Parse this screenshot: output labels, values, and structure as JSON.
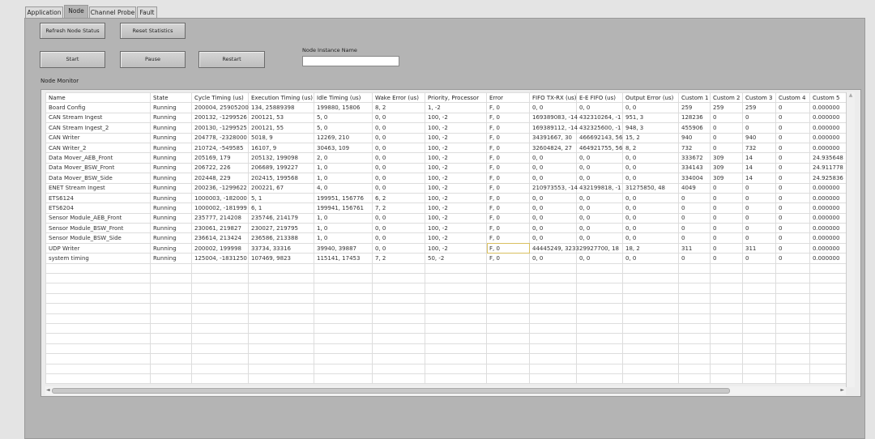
{
  "tabs": [
    {
      "label": "Application"
    },
    {
      "label": "Node"
    },
    {
      "label": "Channel Probe"
    },
    {
      "label": "Fault"
    }
  ],
  "active_tab": "Node",
  "buttons": {
    "refresh": "Refresh Node Status",
    "reset": "Reset Statistics",
    "start": "Start",
    "pause": "Pause",
    "restart": "Restart"
  },
  "node_instance": {
    "label": "Node Instance Name",
    "value": ""
  },
  "monitor": {
    "label": "Node Monitor",
    "columns": [
      "Name",
      "State",
      "Cycle Timing (us)",
      "Execution Timing (us)",
      "Idle Timing (us)",
      "Wake Error (us)",
      "Priority, Processor",
      "Error",
      "FIFO TX-RX (us)",
      "E-E FIFO (us)",
      "Output Error (us)",
      "Custom 1",
      "Custom 2",
      "Custom 3",
      "Custom 4",
      "Custom 5"
    ],
    "rows": [
      [
        "Board Config",
        "Running",
        "200004, 25905200",
        "134, 25889398",
        "199880, 15806",
        "8, 2",
        "1, -2",
        "F, 0",
        "0, 0",
        "0, 0",
        "0, 0",
        "259",
        "259",
        "259",
        "0",
        "0.000000"
      ],
      [
        "CAN Stream Ingest",
        "Running",
        "200132, -1299526",
        "200121, 53",
        "5, 0",
        "0, 0",
        "100, -2",
        "F, 0",
        "169389083, -14",
        "432310264, -1",
        "951, 3",
        "128236",
        "0",
        "0",
        "0",
        "0.000000"
      ],
      [
        "CAN Stream Ingest_2",
        "Running",
        "200130, -1299525",
        "200121, 55",
        "5, 0",
        "0, 0",
        "100, -2",
        "F, 0",
        "169389112, -14",
        "432325600, -1",
        "948, 3",
        "455906",
        "0",
        "0",
        "0",
        "0.000000"
      ],
      [
        "CAN Writer",
        "Running",
        "204778, -2328000",
        "5018, 9",
        "12269, 210",
        "0, 0",
        "100, -2",
        "F, 0",
        "34391667, 30",
        "466692143, 56",
        "15, 2",
        "940",
        "0",
        "940",
        "0",
        "0.000000"
      ],
      [
        "CAN Writer_2",
        "Running",
        "210724, -549585",
        "16107, 9",
        "30463, 109",
        "0, 0",
        "100, -2",
        "F, 0",
        "32604824, 27",
        "464921755, 56",
        "8, 2",
        "732",
        "0",
        "732",
        "0",
        "0.000000"
      ],
      [
        "Data Mover_AEB_Front",
        "Running",
        "205169, 179",
        "205132, 199098",
        "2, 0",
        "0, 0",
        "100, -2",
        "F, 0",
        "0, 0",
        "0, 0",
        "0, 0",
        "333672",
        "309",
        "14",
        "0",
        "24.935648"
      ],
      [
        "Data Mover_BSW_Front",
        "Running",
        "206722, 226",
        "206689, 199227",
        "1, 0",
        "0, 0",
        "100, -2",
        "F, 0",
        "0, 0",
        "0, 0",
        "0, 0",
        "334143",
        "309",
        "14",
        "0",
        "24.911778"
      ],
      [
        "Data Mover_BSW_Side",
        "Running",
        "202448, 229",
        "202415, 199568",
        "1, 0",
        "0, 0",
        "100, -2",
        "F, 0",
        "0, 0",
        "0, 0",
        "0, 0",
        "334004",
        "309",
        "14",
        "0",
        "24.925836"
      ],
      [
        "ENET Stream Ingest",
        "Running",
        "200236, -1299622",
        "200221, 67",
        "4, 0",
        "0, 0",
        "100, -2",
        "F, 0",
        "210973553, -14",
        "432199818, -1",
        "31275850, 48",
        "4049",
        "0",
        "0",
        "0",
        "0.000000"
      ],
      [
        "ETS6124",
        "Running",
        "1000003, -182000",
        "5, 1",
        "199951, 156776",
        "6, 2",
        "100, -2",
        "F, 0",
        "0, 0",
        "0, 0",
        "0, 0",
        "0",
        "0",
        "0",
        "0",
        "0.000000"
      ],
      [
        "ETS6204",
        "Running",
        "1000002, -181999",
        "6, 1",
        "199941, 156761",
        "7, 2",
        "100, -2",
        "F, 0",
        "0, 0",
        "0, 0",
        "0, 0",
        "0",
        "0",
        "0",
        "0",
        "0.000000"
      ],
      [
        "Sensor Module_AEB_Front",
        "Running",
        "235777, 214208",
        "235746, 214179",
        "1, 0",
        "0, 0",
        "100, -2",
        "F, 0",
        "0, 0",
        "0, 0",
        "0, 0",
        "0",
        "0",
        "0",
        "0",
        "0.000000"
      ],
      [
        "Sensor Module_BSW_Front",
        "Running",
        "230061, 219827",
        "230027, 219795",
        "1, 0",
        "0, 0",
        "100, -2",
        "F, 0",
        "0, 0",
        "0, 0",
        "0, 0",
        "0",
        "0",
        "0",
        "0",
        "0.000000"
      ],
      [
        "Sensor Module_BSW_Side",
        "Running",
        "236614, 213424",
        "236586, 213388",
        "1, 0",
        "0, 0",
        "100, -2",
        "F, 0",
        "0, 0",
        "0, 0",
        "0, 0",
        "0",
        "0",
        "0",
        "0",
        "0.000000"
      ],
      [
        "UDP Writer",
        "Running",
        "200002, 199998",
        "33734, 33316",
        "39940, 39887",
        "0, 0",
        "100, -2",
        "F, 0",
        "44445249, 3233",
        "29927700, 18",
        "18, 2",
        "311",
        "0",
        "311",
        "0",
        "0.000000"
      ],
      [
        "system timing",
        "Running",
        "125004, -1831250",
        "107469, 9823",
        "115141, 17453",
        "7, 2",
        "50, -2",
        "F, 0",
        "0, 0",
        "0, 0",
        "0, 0",
        "0",
        "0",
        "0",
        "0",
        "0.000000"
      ]
    ],
    "selected_cell": {
      "row": 14,
      "col": 7
    }
  },
  "scroll": {
    "up": "▲",
    "down": "▼",
    "left": "◄",
    "right": "►"
  }
}
